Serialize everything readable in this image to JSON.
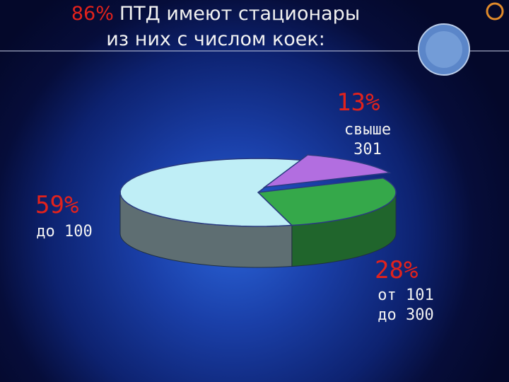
{
  "chart_data": {
    "type": "pie",
    "title": {
      "highlight": "86%",
      "text": "ПТД имеют стационары"
    },
    "subtitle": "из них с числом коек:",
    "categories": [
      "до 100",
      "от 101 до 300",
      "свыше 301"
    ],
    "values": [
      59,
      28,
      13
    ],
    "value_labels": [
      "59%",
      "28%",
      "13%"
    ],
    "colors": [
      "#bfeef6",
      "#35a84a",
      "#b26ee0"
    ]
  }
}
